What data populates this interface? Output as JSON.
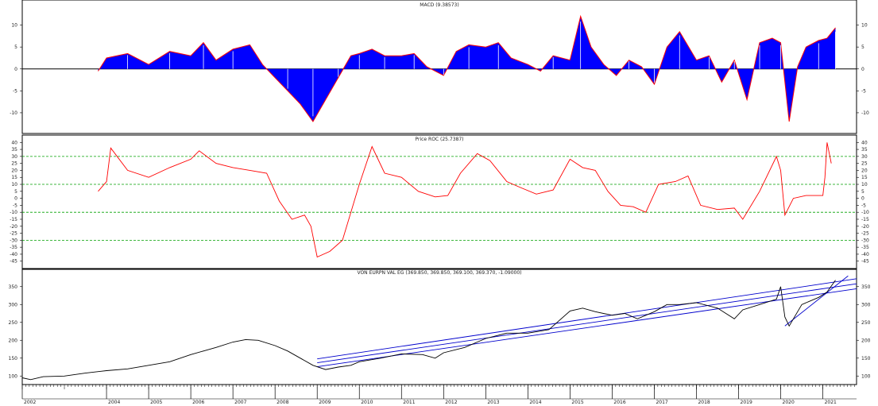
{
  "colors": {
    "macd_fill": "#0000ff",
    "macd_outline": "#ff0000",
    "roc_line": "#ff0000",
    "roc_ref": "#00a000",
    "price_line": "#000000",
    "channel": "#0000cc",
    "frame": "#000000"
  },
  "chart_data": [
    {
      "panel": "macd",
      "type": "area",
      "title": "MACD (9.38573)",
      "ylim": [
        -14,
        15
      ],
      "yticks": [
        10,
        5,
        0,
        -5,
        -10
      ],
      "ytick_labels": [
        "10",
        "5",
        "0",
        "-5",
        "-10"
      ],
      "x": [
        2003.8,
        2004.0,
        2004.5,
        2005.0,
        2005.5,
        2006.0,
        2006.3,
        2006.6,
        2007.0,
        2007.4,
        2007.7,
        2008.0,
        2008.3,
        2008.6,
        2008.9,
        2009.2,
        2009.5,
        2009.8,
        2010.0,
        2010.3,
        2010.6,
        2011.0,
        2011.3,
        2011.6,
        2012.0,
        2012.3,
        2012.6,
        2013.0,
        2013.3,
        2013.6,
        2014.0,
        2014.3,
        2014.6,
        2015.0,
        2015.25,
        2015.5,
        2015.8,
        2016.1,
        2016.4,
        2016.7,
        2017.0,
        2017.3,
        2017.6,
        2018.0,
        2018.3,
        2018.6,
        2018.9,
        2019.2,
        2019.5,
        2019.8,
        2020.0,
        2020.2,
        2020.4,
        2020.6,
        2020.9,
        2021.1,
        2021.3
      ],
      "values": [
        -0.5,
        2.5,
        3.5,
        1.0,
        4.0,
        3.0,
        6.0,
        2.0,
        4.5,
        5.5,
        1.0,
        -2.0,
        -5.0,
        -8.0,
        -12.0,
        -7.0,
        -2.0,
        3.0,
        3.5,
        4.5,
        3.0,
        3.0,
        3.5,
        0.5,
        -1.5,
        4.0,
        5.5,
        5.0,
        6.0,
        2.5,
        1.0,
        -0.5,
        3.0,
        2.0,
        12.0,
        5.0,
        1.0,
        -1.5,
        2.0,
        0.5,
        -3.5,
        5.0,
        8.5,
        2.0,
        3.0,
        -3.0,
        2.0,
        -7.0,
        6.0,
        7.0,
        6.0,
        -12.0,
        0.5,
        5.0,
        6.5,
        7.0,
        9.4
      ]
    },
    {
      "panel": "roc",
      "type": "line",
      "title": "Price ROC (25.7387)",
      "ylim": [
        -48,
        43
      ],
      "yticks": [
        40,
        35,
        30,
        25,
        20,
        15,
        10,
        5,
        0,
        -5,
        -10,
        -15,
        -20,
        -25,
        -30,
        -35,
        -40,
        -45
      ],
      "ytick_labels": [
        "40",
        "35",
        "30",
        "25",
        "20",
        "15",
        "10",
        "5",
        "0",
        "-5",
        "-10",
        "-15",
        "-20",
        "-25",
        "-30",
        "-35",
        "-40",
        "-45"
      ],
      "reference_lines": [
        30,
        10,
        -10,
        -30
      ],
      "x": [
        2003.8,
        2004.0,
        2004.1,
        2004.5,
        2005.0,
        2005.5,
        2006.0,
        2006.2,
        2006.6,
        2007.0,
        2007.4,
        2007.8,
        2008.1,
        2008.4,
        2008.7,
        2008.85,
        2009.0,
        2009.3,
        2009.6,
        2009.8,
        2010.0,
        2010.3,
        2010.6,
        2011.0,
        2011.4,
        2011.8,
        2012.1,
        2012.4,
        2012.8,
        2013.1,
        2013.5,
        2013.8,
        2014.2,
        2014.6,
        2015.0,
        2015.3,
        2015.6,
        2015.9,
        2016.2,
        2016.5,
        2016.8,
        2017.1,
        2017.5,
        2017.8,
        2018.1,
        2018.5,
        2018.9,
        2019.1,
        2019.5,
        2019.9,
        2020.0,
        2020.1,
        2020.3,
        2020.6,
        2020.9,
        2021.0,
        2021.05,
        2021.1,
        2021.2
      ],
      "values": [
        5,
        12,
        36,
        20,
        15,
        22,
        28,
        34,
        25,
        22,
        20,
        18,
        -2,
        -15,
        -12,
        -20,
        -42,
        -38,
        -30,
        -10,
        10,
        37,
        18,
        15,
        5,
        1,
        2,
        18,
        32,
        27,
        12,
        8,
        3,
        6,
        28,
        22,
        20,
        5,
        -5,
        -6,
        -10,
        10,
        12,
        16,
        -5,
        -8,
        -7,
        -15,
        5,
        30,
        20,
        -12,
        0,
        2,
        2,
        2,
        15,
        40,
        25
      ]
    },
    {
      "panel": "price",
      "type": "line",
      "title": "VON EURPN VAL EG (369.850, 369.850, 369.100, 369.370, -1.09000)",
      "ylim": [
        85,
        385
      ],
      "yticks": [
        350,
        300,
        250,
        200,
        150,
        100
      ],
      "ytick_labels": [
        "350",
        "300",
        "250",
        "200",
        "150",
        "100"
      ],
      "x": [
        2002.0,
        2002.2,
        2002.5,
        2003.0,
        2003.5,
        2004.0,
        2004.5,
        2005.0,
        2005.5,
        2006.0,
        2006.3,
        2006.6,
        2007.0,
        2007.3,
        2007.6,
        2008.0,
        2008.3,
        2008.6,
        2008.9,
        2009.2,
        2009.5,
        2009.8,
        2010.0,
        2010.5,
        2011.0,
        2011.5,
        2011.8,
        2012.0,
        2012.5,
        2013.0,
        2013.5,
        2014.0,
        2014.5,
        2015.0,
        2015.3,
        2015.6,
        2016.0,
        2016.3,
        2016.6,
        2017.0,
        2017.3,
        2017.6,
        2018.0,
        2018.5,
        2018.9,
        2019.1,
        2019.5,
        2019.9,
        2020.0,
        2020.1,
        2020.2,
        2020.5,
        2020.9,
        2021.1,
        2021.3
      ],
      "values": [
        95,
        90,
        98,
        100,
        108,
        115,
        120,
        130,
        140,
        160,
        170,
        180,
        195,
        202,
        200,
        185,
        170,
        150,
        130,
        118,
        125,
        130,
        140,
        150,
        162,
        160,
        150,
        165,
        180,
        205,
        220,
        220,
        230,
        282,
        290,
        280,
        270,
        275,
        260,
        280,
        300,
        300,
        305,
        290,
        260,
        285,
        300,
        315,
        350,
        265,
        240,
        300,
        320,
        335,
        368
      ]
    }
  ],
  "regression_channel": {
    "x": [
      2009.0,
      2021.8
    ],
    "upper": [
      148,
      372
    ],
    "mid": [
      137,
      358
    ],
    "lower": [
      126,
      344
    ]
  },
  "trend_line": {
    "x": [
      2020.1,
      2021.6
    ],
    "values": [
      240,
      380
    ]
  },
  "x_axis": {
    "range": [
      2002.0,
      2021.8
    ],
    "labels": [
      "2002",
      "2004",
      "2005",
      "2006",
      "2007",
      "2008",
      "2009",
      "2010",
      "2011",
      "2012",
      "2013",
      "2014",
      "2015",
      "2016",
      "2017",
      "2018",
      "2019",
      "2020",
      "2021"
    ],
    "label_positions": [
      2002,
      2004,
      2005,
      2006,
      2007,
      2008,
      2009,
      2010,
      2011,
      2012,
      2013,
      2014,
      2015,
      2016,
      2017,
      2018,
      2019,
      2020,
      2021
    ]
  }
}
